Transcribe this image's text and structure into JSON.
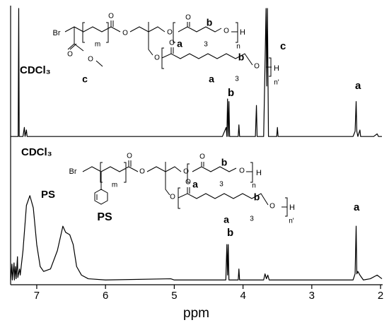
{
  "chart_data": [
    {
      "type": "line",
      "xlim": [
        7.38,
        1.98
      ],
      "ylim": [
        0,
        100
      ],
      "x": [
        7.38,
        7.27,
        7.262,
        7.255,
        7.2,
        7.18,
        7.17,
        7.15,
        7.14,
        6.0,
        5.0,
        4.3,
        4.245,
        4.235,
        4.225,
        4.215,
        4.205,
        4.195,
        4.07,
        4.06,
        4.05,
        3.82,
        3.805,
        3.795,
        3.7,
        3.665,
        3.655,
        3.645,
        3.63,
        3.51,
        3.5,
        3.49,
        2.4,
        2.37,
        2.355,
        2.345,
        2.33,
        2.3,
        2.29,
        2.1,
        2.05,
        2.03,
        1.98
      ],
      "series": [
        {
          "color": "#000000",
          "values": [
            1,
            1,
            100,
            1,
            1,
            8,
            1,
            6,
            1,
            1,
            1,
            1,
            8,
            1,
            30,
            1,
            28,
            1,
            1,
            10,
            1,
            1,
            25,
            1,
            1,
            100,
            40,
            100,
            1,
            1,
            8,
            1,
            1,
            5,
            28,
            5,
            1,
            6,
            1,
            1,
            3,
            1,
            1
          ]
        }
      ],
      "annotations": [
        "CDCl₃",
        "b",
        "c",
        "a"
      ],
      "structure_labels": [
        "Br",
        "m",
        "O",
        "O",
        "O",
        "O",
        "b",
        "O",
        "H",
        "n",
        "3",
        "a",
        "O",
        "O",
        "c",
        "O",
        "O",
        "b",
        "O",
        "H",
        "n'",
        "a",
        "3"
      ]
    },
    {
      "type": "line",
      "xlim": [
        7.38,
        1.98
      ],
      "ylim": [
        0,
        100
      ],
      "xticks": [
        7,
        6,
        5,
        4,
        3,
        2
      ],
      "xlabel": "ppm",
      "x": [
        7.38,
        7.36,
        7.355,
        7.33,
        7.325,
        7.31,
        7.3,
        7.28,
        7.275,
        7.25,
        7.24,
        7.2,
        7.15,
        7.1,
        7.05,
        7.0,
        6.95,
        6.9,
        6.8,
        6.7,
        6.62,
        6.58,
        6.52,
        6.47,
        6.42,
        6.35,
        6.25,
        6.0,
        5.05,
        5.0,
        4.25,
        4.235,
        4.225,
        4.215,
        4.205,
        4.07,
        4.06,
        4.05,
        3.7,
        3.68,
        3.66,
        3.64,
        3.62,
        2.4,
        2.37,
        2.355,
        2.345,
        2.33,
        2.3,
        2.25,
        2.15,
        2.05,
        1.98
      ],
      "series": [
        {
          "color": "#000000",
          "values": [
            1,
            14,
            1,
            15,
            1,
            12,
            2,
            20,
            3,
            10,
            5,
            25,
            62,
            70,
            60,
            30,
            12,
            8,
            10,
            25,
            45,
            40,
            38,
            30,
            12,
            5,
            2,
            1,
            2,
            1,
            1,
            30,
            5,
            30,
            1,
            1,
            10,
            1,
            1,
            6,
            2,
            5,
            1,
            1,
            6,
            45,
            6,
            8,
            5,
            1,
            2,
            5,
            2
          ]
        }
      ],
      "annotations": [
        "CDCl₃",
        "PS",
        "b",
        "a"
      ],
      "structure_labels": [
        "Br",
        "m",
        "PS",
        "O",
        "O",
        "O",
        "O",
        "b",
        "O",
        "H",
        "n",
        "3",
        "a",
        "O",
        "O",
        "b",
        "O",
        "H",
        "n'",
        "a",
        "3"
      ]
    }
  ]
}
